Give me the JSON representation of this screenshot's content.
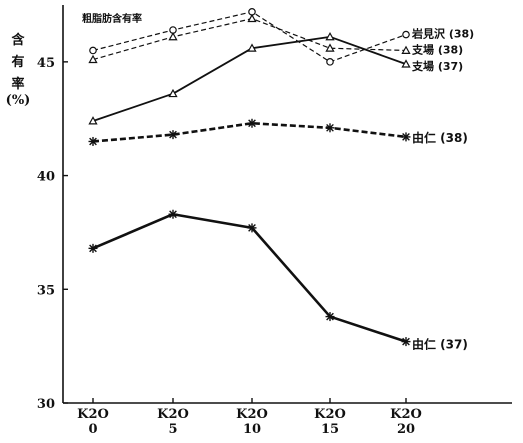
{
  "chart_data": {
    "type": "line",
    "title": "粗脂肪含有率",
    "ylabel_chars": [
      "含",
      "有",
      "率",
      "(%)"
    ],
    "xlabel": "",
    "categories": [
      {
        "top": "K2O",
        "bottom": "0"
      },
      {
        "top": "K2O",
        "bottom": "5"
      },
      {
        "top": "K2O",
        "bottom": "10"
      },
      {
        "top": "K2O",
        "bottom": "15"
      },
      {
        "top": "K2O",
        "bottom": "20"
      }
    ],
    "x": [
      0,
      5,
      10,
      15,
      20
    ],
    "ylim": [
      30,
      47.5
    ],
    "yticks": [
      30,
      35,
      40,
      45
    ],
    "grid": false,
    "legend": "inline-right",
    "series": [
      {
        "name": "岩見沢 (38)",
        "values": [
          45.5,
          46.4,
          47.2,
          45.0,
          46.2
        ],
        "style": "dashed",
        "marker": "circle",
        "weight": "thin"
      },
      {
        "name": "支場 (38)",
        "values": [
          45.1,
          46.1,
          46.9,
          45.6,
          45.5
        ],
        "style": "dashed",
        "marker": "triangle",
        "weight": "thin"
      },
      {
        "name": "支場 (37)",
        "values": [
          42.4,
          43.6,
          45.6,
          46.1,
          44.9
        ],
        "style": "solid",
        "marker": "triangle",
        "weight": "medium"
      },
      {
        "name": "由仁 (38)",
        "values": [
          41.5,
          41.8,
          42.3,
          42.1,
          41.7
        ],
        "style": "dashed",
        "marker": "star",
        "weight": "bold"
      },
      {
        "name": "由仁 (37)",
        "values": [
          36.8,
          38.3,
          37.7,
          33.8,
          32.7
        ],
        "style": "solid",
        "marker": "star",
        "weight": "bold"
      }
    ]
  }
}
